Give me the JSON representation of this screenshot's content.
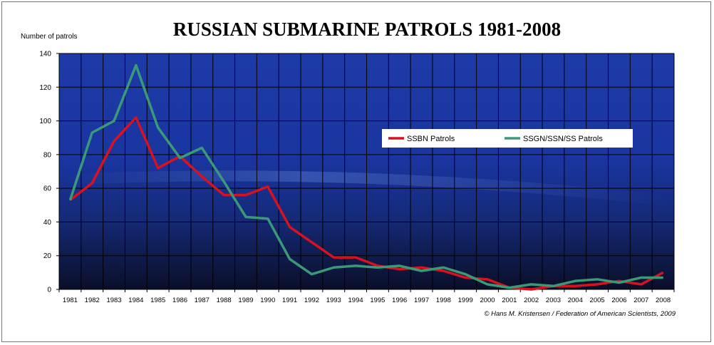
{
  "chart_data": {
    "type": "line",
    "title": "RUSSIAN SUBMARINE PATROLS 1981-2008",
    "ylabel": "Number of patrols",
    "xlabel": "",
    "ylim": [
      0,
      140
    ],
    "yticks": [
      0,
      20,
      40,
      60,
      80,
      100,
      120,
      140
    ],
    "grid": true,
    "legend_position": "center-right",
    "categories": [
      "1981",
      "1982",
      "1983",
      "1984",
      "1985",
      "1986",
      "1987",
      "1988",
      "1989",
      "1990",
      "1991",
      "1992",
      "1993",
      "1994",
      "1995",
      "1996",
      "1997",
      "1998",
      "1999",
      "2000",
      "2001",
      "2002",
      "2003",
      "2004",
      "2005",
      "2006",
      "2007",
      "2008"
    ],
    "series": [
      {
        "name": "SSBN Patrols",
        "color": "#d7121f",
        "values": [
          53,
          63,
          88,
          102,
          72,
          79,
          67,
          56,
          56,
          61,
          37,
          28,
          19,
          19,
          14,
          12,
          13,
          11,
          7,
          6,
          1,
          0,
          2,
          2,
          3,
          5,
          3,
          10
        ]
      },
      {
        "name": "SSGN/SSN/SS Patrols",
        "color": "#3a9a78",
        "values": [
          53,
          93,
          100,
          133,
          96,
          78,
          84,
          64,
          43,
          42,
          18,
          9,
          13,
          14,
          13,
          14,
          11,
          13,
          9,
          3,
          1,
          3,
          2,
          5,
          6,
          4,
          7,
          7
        ]
      }
    ],
    "background": "underwater submarine photo, blue"
  },
  "credit": "© Hans M. Kristensen / Federation of American Scientists, 2009"
}
